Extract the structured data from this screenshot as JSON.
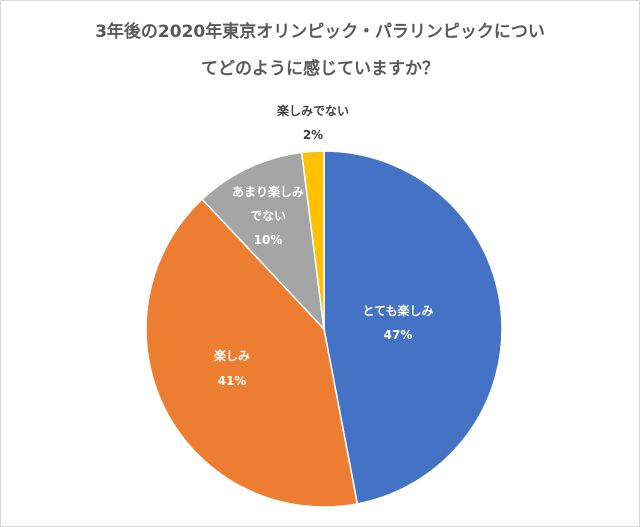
{
  "chart_data": {
    "type": "pie",
    "title_lines": [
      "3年後の2020年東京オリンピック・パラリンピックについ",
      "てどのように感じていますか？"
    ],
    "slices": [
      {
        "label": "とても楽しみ",
        "value": 47,
        "value_label": "47%",
        "color": "#4472c4"
      },
      {
        "label": "楽しみ",
        "value": 41,
        "value_label": "41%",
        "color": "#ed7d31"
      },
      {
        "label_lines": [
          "あまり楽しみ",
          "でない"
        ],
        "value": 10,
        "value_label": "10%",
        "color": "#a5a5a5"
      },
      {
        "label": "楽しみでない",
        "value": 2,
        "value_label": "2%",
        "color": "#ffc000"
      }
    ],
    "legend": "none",
    "start_angle_deg": 0,
    "direction": "clockwise"
  }
}
